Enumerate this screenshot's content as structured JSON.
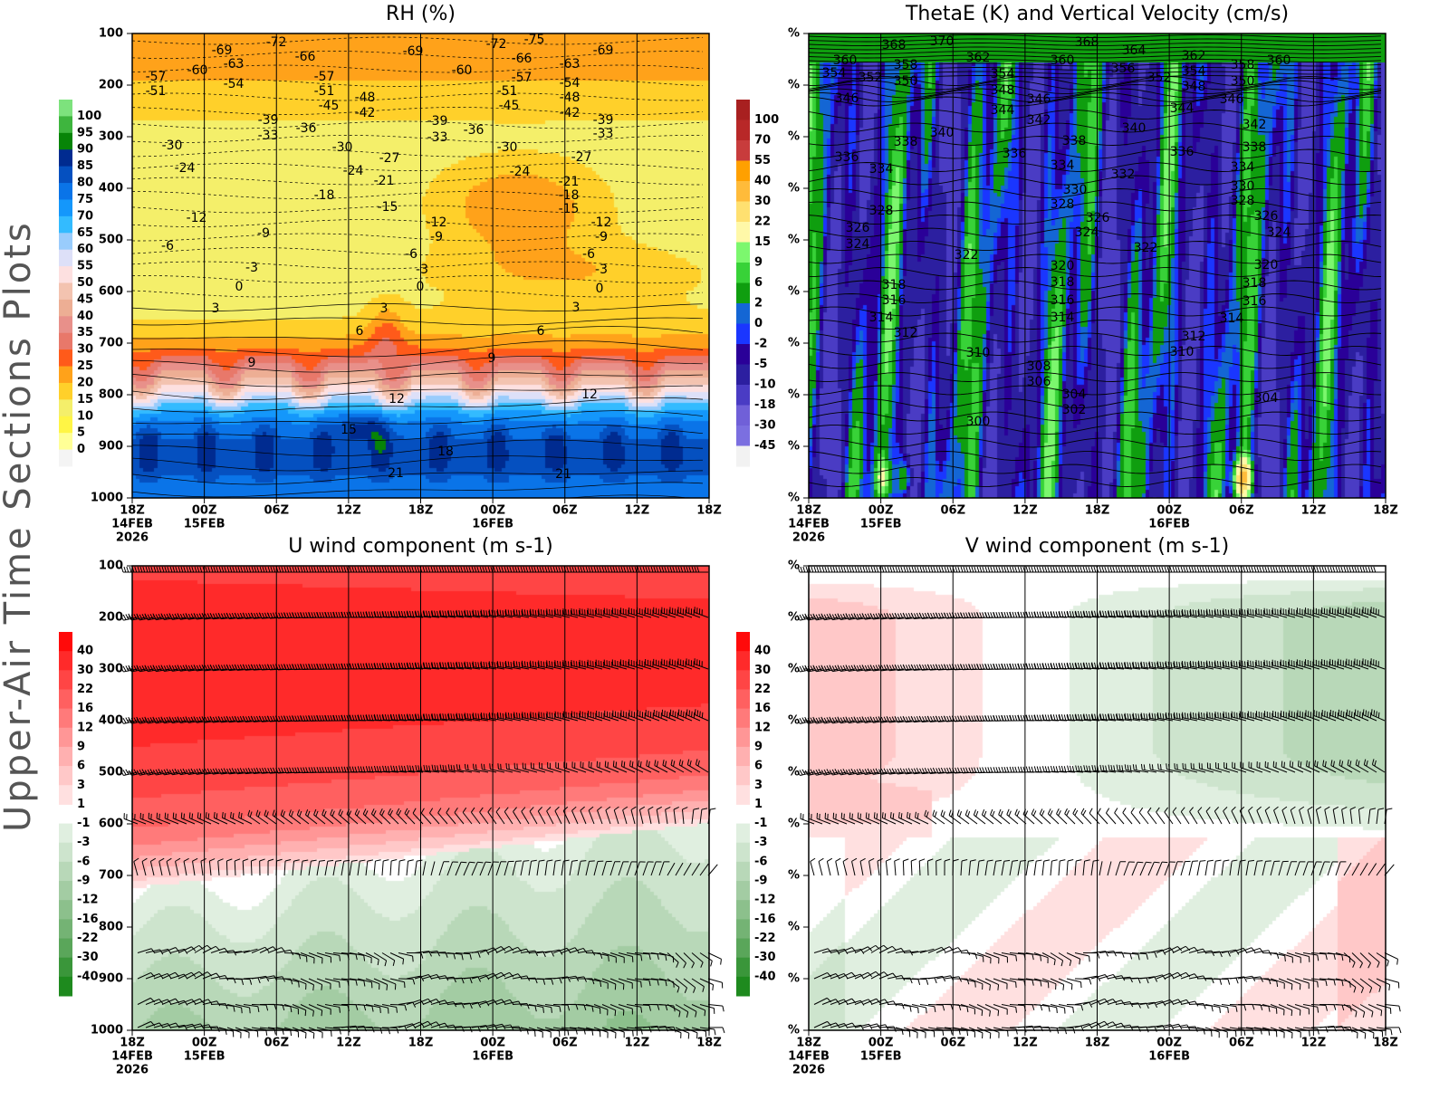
{
  "figure": {
    "side_title": "Upper-Air Time Sections Plots"
  },
  "x_ticks": [
    [
      "18Z",
      "14FEB",
      "2026"
    ],
    [
      "00Z",
      "15FEB"
    ],
    [
      "06Z"
    ],
    [
      "12Z"
    ],
    [
      "18Z"
    ],
    [
      "00Z",
      "16FEB"
    ],
    [
      "06Z"
    ],
    [
      "12Z"
    ],
    [
      "18Z"
    ]
  ],
  "chart_data": [
    {
      "type": "heatmap",
      "title": "RH (%)",
      "y_ticks": [
        "100",
        "200",
        "300",
        "400",
        "500",
        "600",
        "700",
        "800",
        "900",
        "1000"
      ],
      "colorbar": [
        "100",
        "95",
        "90",
        "85",
        "80",
        "75",
        "70",
        "65",
        "60",
        "55",
        "50",
        "45",
        "40",
        "35",
        "30",
        "25",
        "20",
        "15",
        "10",
        "5",
        "0"
      ],
      "colors": [
        "#7de27d",
        "#3eb53e",
        "#078407",
        "#002b90",
        "#0550c0",
        "#0a74e8",
        "#1497fb",
        "#33bbff",
        "#99ccfc",
        "#dde0f8",
        "#fde0e0",
        "#f3c3b0",
        "#edae94",
        "#e8908a",
        "#e8786a",
        "#ff5a1a",
        "#ffa21a",
        "#ffd02a",
        "#f4ef6a",
        "#fff545",
        "#ffff96",
        "#f4f4f4"
      ],
      "contour_labels": [
        "-72",
        "-66",
        "-69",
        "-63",
        "-60",
        "-57",
        "-51",
        "-54",
        "-57",
        "-51",
        "-45",
        "-48",
        "-42",
        "-39",
        "-33",
        "-36",
        "-30",
        "-30",
        "-24",
        "-24",
        "-27",
        "-21",
        "-18",
        "-15",
        "-12",
        "-9",
        "-6",
        "-3",
        "0",
        "3",
        "3",
        "6",
        "9",
        "12",
        "15",
        "18",
        "21",
        "-69",
        "-72",
        "-75",
        "-66",
        "-69",
        "-60",
        "-63",
        "-57",
        "-54",
        "-51",
        "-48",
        "-45",
        "-42",
        "-39",
        "-33",
        "-36",
        "-30",
        "-39",
        "-33",
        "-27",
        "-24",
        "-21",
        "-18",
        "-15",
        "-12",
        "-9",
        "-12",
        "-9",
        "-6",
        "-6",
        "-3",
        "-3",
        "0",
        "0",
        "3",
        "6",
        "9",
        "12",
        "21"
      ]
    },
    {
      "type": "heatmap",
      "title": "ThetaE (K) and Vertical Velocity (cm/s)",
      "y_ticks": [
        "%",
        "%",
        "%",
        "%",
        "%",
        "%",
        "%",
        "%",
        "%",
        "%"
      ],
      "colorbar": [
        "100",
        "70",
        "55",
        "40",
        "30",
        "22",
        "15",
        "9",
        "6",
        "2",
        "0",
        "-2",
        "-5",
        "-10",
        "-18",
        "-30",
        "-45"
      ],
      "colors": [
        "#a82020",
        "#b82828",
        "#c83c3c",
        "#ffa000",
        "#ffbb3a",
        "#ffe070",
        "#fff8a8",
        "#7cf76e",
        "#38d238",
        "#0f9e0f",
        "#1466d4",
        "#1a36ff",
        "#2a0098",
        "#2c1fa0",
        "#4a3cc4",
        "#7060d8",
        "#7b6fe0",
        "#f2f2f2"
      ],
      "contour_labels": [
        "368",
        "370",
        "368",
        "364",
        "362",
        "362",
        "360",
        "358",
        "360",
        "358",
        "360",
        "356",
        "354",
        "354",
        "354",
        "352",
        "350",
        "352",
        "348",
        "350",
        "348",
        "346",
        "346",
        "346",
        "344",
        "344",
        "342",
        "342",
        "340",
        "340",
        "338",
        "338",
        "338",
        "336",
        "336",
        "336",
        "334",
        "334",
        "334",
        "332",
        "330",
        "330",
        "328",
        "328",
        "328",
        "326",
        "326",
        "326",
        "324",
        "324",
        "324",
        "322",
        "322",
        "320",
        "320",
        "318",
        "318",
        "318",
        "316",
        "316",
        "316",
        "314",
        "314",
        "314",
        "312",
        "312",
        "310",
        "310",
        "308",
        "306",
        "304",
        "304",
        "302",
        "300"
      ]
    },
    {
      "type": "heatmap",
      "title": "U wind component (m s-1)",
      "y_ticks": [
        "100",
        "200",
        "300",
        "400",
        "500",
        "600",
        "700",
        "800",
        "900",
        "1000"
      ],
      "colorbar": [
        "40",
        "30",
        "22",
        "16",
        "12",
        "9",
        "6",
        "3",
        "1",
        "-1",
        "-3",
        "-6",
        "-9",
        "-12",
        "-16",
        "-22",
        "-30",
        "-40"
      ],
      "colors": [
        "#ff0a0a",
        "#ff2a2a",
        "#ff4545",
        "#ff6060",
        "#ff7a7a",
        "#ff9696",
        "#ffb0b0",
        "#ffc8c8",
        "#ffe0e0",
        "#ffffff",
        "#e0efe0",
        "#cde4cd",
        "#b8d8b8",
        "#a3cca3",
        "#8cc08c",
        "#74b374",
        "#5aa65a",
        "#3a963a",
        "#1e8a1e"
      ]
    },
    {
      "type": "heatmap",
      "title": "V wind component (m s-1)",
      "y_ticks": [
        "%",
        "%",
        "%",
        "%",
        "%",
        "%",
        "%",
        "%",
        "%",
        "%"
      ],
      "colorbar": [
        "40",
        "30",
        "22",
        "16",
        "12",
        "9",
        "6",
        "3",
        "1",
        "-1",
        "-3",
        "-6",
        "-9",
        "-12",
        "-16",
        "-22",
        "-30",
        "-40"
      ],
      "colors": [
        "#ff0a0a",
        "#ff2a2a",
        "#ff4545",
        "#ff6060",
        "#ff7a7a",
        "#ff9696",
        "#ffb0b0",
        "#ffc8c8",
        "#ffe0e0",
        "#ffffff",
        "#e0efe0",
        "#cde4cd",
        "#b8d8b8",
        "#a3cca3",
        "#8cc08c",
        "#74b374",
        "#5aa65a",
        "#3a963a",
        "#1e8a1e"
      ]
    }
  ]
}
